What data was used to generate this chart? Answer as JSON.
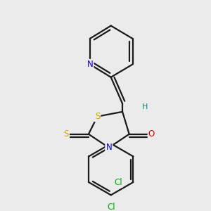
{
  "background_color": "#ebebeb",
  "bond_color": "#1a1a1a",
  "lw": 1.6,
  "atom_colors": {
    "N": "#0000cc",
    "S": "#ccaa00",
    "O": "#cc0000",
    "Cl": "#00aa00",
    "H": "#008888",
    "C": "#1a1a1a"
  },
  "figsize": [
    3.0,
    3.0
  ],
  "dpi": 100
}
